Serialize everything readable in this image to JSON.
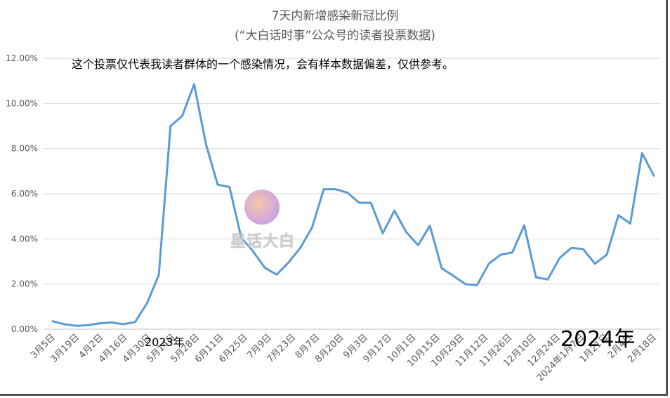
{
  "chart_data": {
    "type": "line",
    "title": "7天内新增感染新冠比例",
    "subtitle": "(“大白话时事”公众号的读者投票数据)",
    "annotation": "这个投票仅代表我读者群体的一个感染情况，会有样本数据偏差，仅供参考。",
    "year_labels": [
      "2023年",
      "2024年"
    ],
    "ylim": [
      0,
      12
    ],
    "yticks": [
      "0.00%",
      "2.00%",
      "4.00%",
      "6.00%",
      "8.00%",
      "10.00%",
      "12.00%"
    ],
    "grid": true,
    "x_tick_labels": [
      "3月5日",
      "3月19日",
      "4月2日",
      "4月16日",
      "4月30日",
      "5月14日",
      "5月28日",
      "6月11日",
      "6月25日",
      "7月9日",
      "7月23日",
      "8月7日",
      "8月20日",
      "9月3日",
      "9月17日",
      "10月1日",
      "10月15日",
      "10月29日",
      "11月12日",
      "11月26日",
      "12月10日",
      "12月24日",
      "2024年1月7日",
      "1月21日",
      "2月4日",
      "2月18日"
    ],
    "series": [
      {
        "color": "#5b9bd5",
        "values": [
          0.35,
          0.22,
          0.15,
          0.18,
          0.26,
          0.3,
          0.22,
          0.32,
          1.15,
          2.4,
          9.0,
          9.45,
          10.85,
          8.2,
          6.4,
          6.3,
          4.05,
          3.45,
          2.72,
          2.42,
          2.95,
          3.6,
          4.5,
          6.2,
          6.2,
          6.05,
          5.6,
          5.6,
          4.25,
          5.25,
          4.3,
          3.72,
          4.58,
          2.7,
          2.36,
          2.0,
          1.95,
          2.9,
          3.3,
          3.4,
          4.6,
          2.3,
          2.2,
          3.15,
          3.6,
          3.55,
          2.9,
          3.3,
          5.05,
          4.68,
          7.8,
          6.8
        ]
      }
    ]
  },
  "watermark": {
    "text": "星话大白",
    "icon": "rabbit-icon"
  }
}
